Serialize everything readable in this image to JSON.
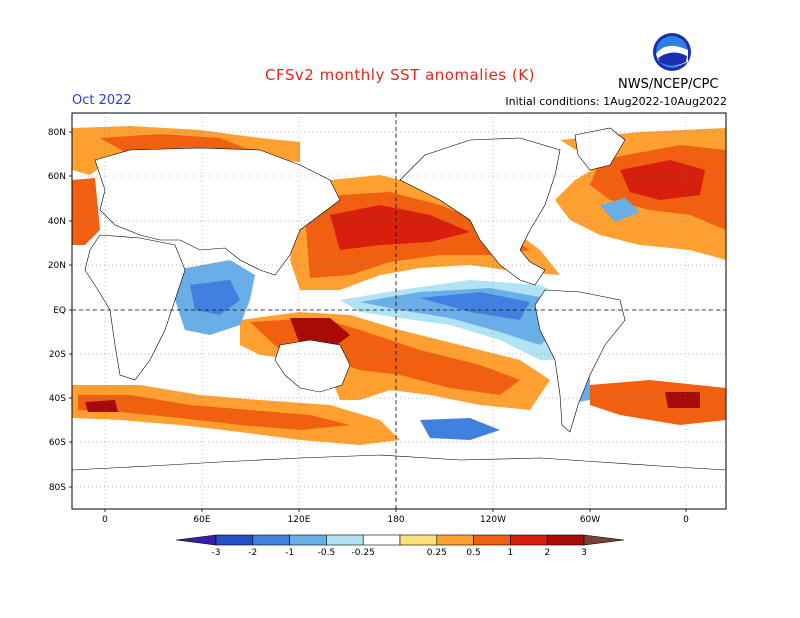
{
  "header": {
    "title": "CFSv2 monthly SST anomalies (K)",
    "period": "Oct 2022",
    "initial_conditions": "Initial conditions: 1Aug2022-10Aug2022",
    "agency": "NWS/NCEP/CPC",
    "logo_text": "NOAA"
  },
  "map": {
    "lat_labels": [
      "80N",
      "60N",
      "40N",
      "20N",
      "EQ",
      "20S",
      "40S",
      "60S",
      "80S"
    ],
    "lon_labels": [
      "0",
      "60E",
      "120E",
      "180",
      "120W",
      "60W",
      "0"
    ]
  },
  "colorbar": {
    "labels": [
      "-3",
      "-2",
      "-1",
      "-0.5",
      "-0.25",
      "0.25",
      "0.5",
      "1",
      "2",
      "3"
    ],
    "colors": [
      "#3a1fa8",
      "#2550c8",
      "#3f80e0",
      "#6aaee8",
      "#b0e4f4",
      "#ffffff",
      "#fbe07c",
      "#ffa030",
      "#f06010",
      "#d81e0c",
      "#a80a08",
      "#7a4030"
    ]
  }
}
